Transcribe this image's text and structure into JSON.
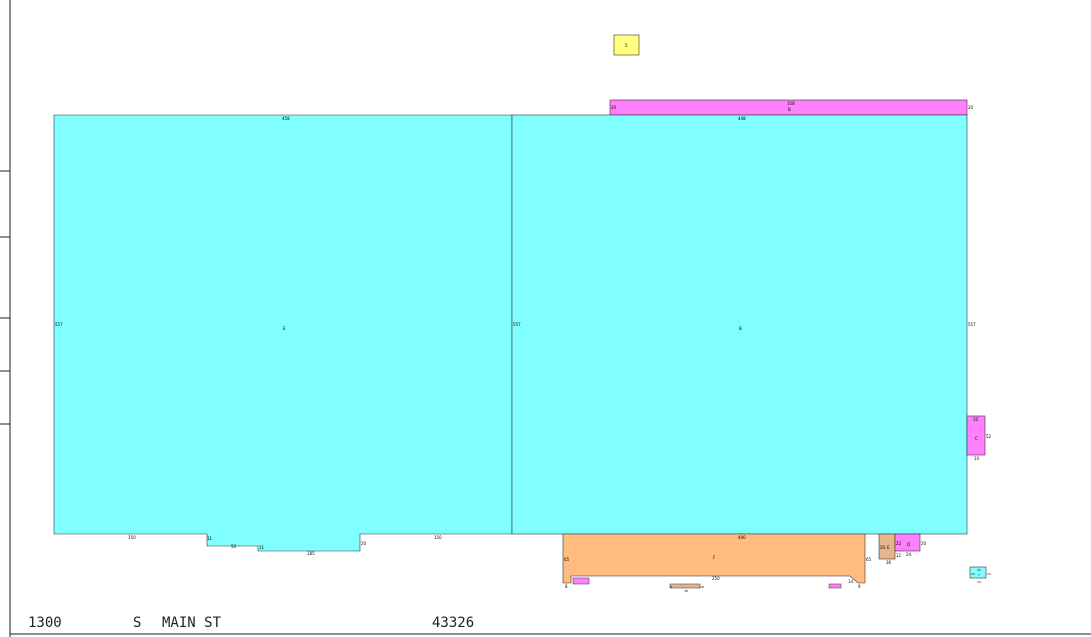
{
  "address": {
    "number": "1300",
    "direction": "S",
    "street": "MAIN ST",
    "zip": "43326"
  },
  "colors": {
    "cyan": "#7fffff",
    "magenta": "#ff80ff",
    "orange": "#ffbb80",
    "yellow": "#ffff80",
    "tan": "#e8b48c",
    "outline": "#333333",
    "text": "#000000"
  },
  "areas": {
    "left_main": "E",
    "right_main": "B",
    "top_strip": "B",
    "right_small": "C",
    "bottom_orange": "F",
    "yellow_box": "5",
    "small_box_1": "E",
    "small_box_2": "D",
    "small_box_3": "7"
  },
  "dims": {
    "left_top": "458",
    "right_top": "448",
    "left_side": "557",
    "mid_side": "557",
    "right_side": "557",
    "top_strip_len": "358",
    "top_strip_left": "20",
    "top_strip_right": "20",
    "bottom_left_a": "150",
    "bottom_left_b": "11",
    "bottom_left_c": "50",
    "bottom_left_d": "11",
    "bottom_left_e": "185",
    "bottom_left_f": "20",
    "bottom_right_a": "150",
    "right_small_top": "10",
    "right_small_side": "52",
    "right_small_bottom": "10",
    "orange_top": "440",
    "orange_left": "65",
    "orange_right": "65",
    "orange_bottom": "250",
    "small_1a": "20",
    "small_1b": "22",
    "small_2a": "24",
    "small_2b": "12",
    "small_2c": "36",
    "small_3a": "10",
    "small_3b": "10",
    "small_3c": "10",
    "small_3d": "10",
    "orange_foot_a": "8",
    "orange_foot_b": "18",
    "orange_foot_c": "14",
    "orange_foot_d": "8",
    "orange_foot_e": "38",
    "orange_foot_f": "9"
  }
}
